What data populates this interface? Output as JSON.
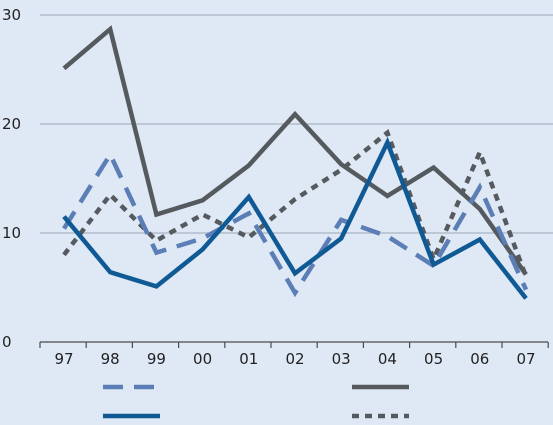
{
  "chart_data": {
    "type": "line",
    "title": "",
    "xlabel": "",
    "ylabel": "",
    "categories": [
      "97",
      "98",
      "99",
      "00",
      "01",
      "02",
      "03",
      "04",
      "05",
      "06",
      "07"
    ],
    "ylim": [
      0,
      30
    ],
    "yticks": [
      0,
      10,
      20,
      30
    ],
    "grid": true,
    "legend_position": "bottom",
    "series": [
      {
        "values": [
          25.1,
          28.7,
          11.7,
          13.0,
          16.2,
          20.9,
          16.3,
          13.4,
          16.0,
          12.2,
          6.2
        ],
        "color": "#555a5f",
        "dash": "solid"
      },
      {
        "values": [
          8.0,
          13.5,
          9.3,
          11.7,
          9.6,
          13.1,
          15.8,
          19.2,
          7.6,
          17.4,
          6.0
        ],
        "color": "#555a5f",
        "dash": "dotted"
      },
      {
        "values": [
          10.4,
          17.2,
          8.2,
          9.5,
          11.8,
          4.5,
          11.2,
          9.7,
          7.0,
          14.2,
          4.8
        ],
        "color": "#5b7eb6",
        "dash": "dashed"
      },
      {
        "values": [
          11.5,
          6.4,
          5.1,
          8.5,
          13.3,
          6.3,
          9.5,
          18.3,
          7.1,
          9.4,
          4.0
        ],
        "color": "#0f5a94",
        "dash": "solid"
      }
    ]
  },
  "legend": [
    {
      "series": 2,
      "style": "dashed",
      "color": "#5b7eb6"
    },
    {
      "series": 0,
      "style": "solid",
      "color": "#555a5f"
    },
    {
      "series": 3,
      "style": "solid",
      "color": "#0f5a94"
    },
    {
      "series": 1,
      "style": "dotted",
      "color": "#555a5f"
    }
  ]
}
